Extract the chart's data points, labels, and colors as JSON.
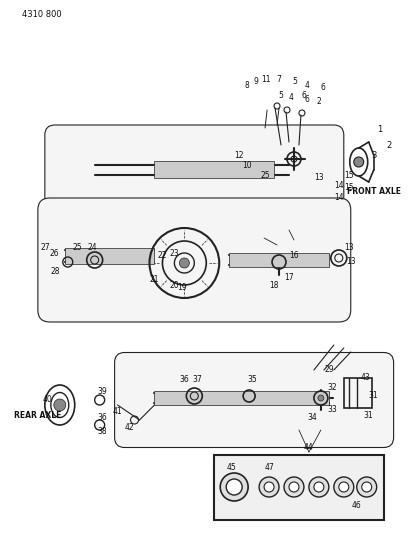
{
  "bg_color": "#ffffff",
  "diagram_color": "#222222",
  "page_id": "4310 800",
  "title_top_label": "FRONT AXLE",
  "title_bottom_label": "REAR AXLE",
  "fig_width": 4.08,
  "fig_height": 5.33,
  "dpi": 100
}
